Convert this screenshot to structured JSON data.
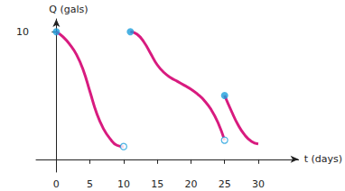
{
  "chart_data": {
    "type": "line",
    "x_label": "t (days)",
    "y_label": "Q (gals)",
    "xlim": [
      -3,
      36
    ],
    "ylim": [
      -1,
      11
    ],
    "xticks": [
      0,
      5,
      10,
      15,
      20,
      25,
      30
    ],
    "yticks": [
      10
    ],
    "grid": false,
    "series": [
      {
        "color": "#d81b7f",
        "marker": "filled-open",
        "x": [
          0,
          1,
          2,
          3,
          4,
          5,
          6,
          7,
          8,
          9,
          10
        ],
        "values": [
          10,
          9.6,
          9,
          8.2,
          7,
          5.3,
          3.6,
          2.4,
          1.6,
          1.1,
          1
        ]
      },
      {
        "color": "#d81b7f",
        "marker": "filled-open",
        "x": [
          11,
          12,
          13,
          14,
          15,
          16,
          17,
          18,
          19,
          20,
          21,
          22,
          23,
          24,
          25
        ],
        "values": [
          10,
          9.8,
          9.2,
          8.3,
          7.4,
          6.8,
          6.4,
          6.1,
          5.8,
          5.5,
          5.1,
          4.6,
          3.9,
          2.9,
          1.5
        ]
      },
      {
        "color": "#d81b7f",
        "marker": "filled-none",
        "x": [
          25,
          26,
          27,
          28,
          29,
          30
        ],
        "values": [
          5,
          3.8,
          2.7,
          1.9,
          1.4,
          1.2
        ]
      }
    ]
  }
}
